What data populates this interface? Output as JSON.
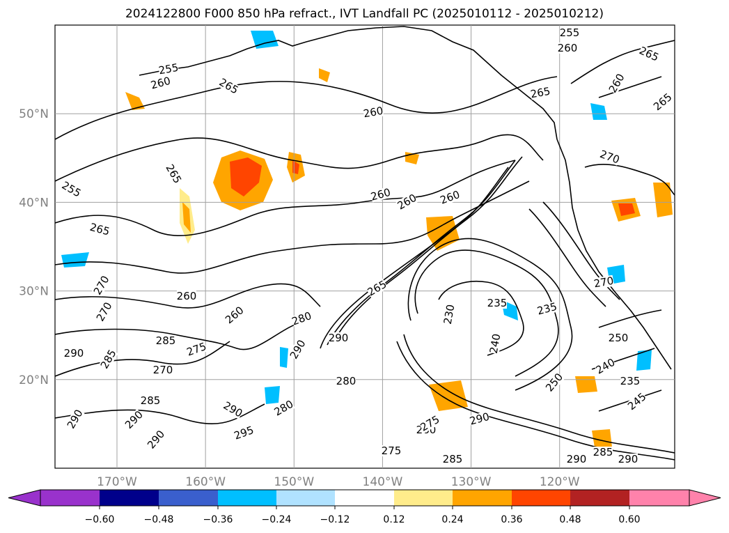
{
  "title": "2024122800 F000 850 hPa refract., IVT Landfall PC (2025010112 - 2025010212)",
  "map": {
    "lat_labels": [
      "50°N",
      "40°N",
      "30°N",
      "20°N"
    ],
    "lon_labels": [
      "170°W",
      "160°W",
      "150°W",
      "140°W",
      "130°W",
      "120°W"
    ],
    "extent": {
      "lon": [
        -177,
        -107
      ],
      "lat": [
        10,
        60
      ]
    },
    "gridlines": true,
    "contour_labels": [
      "255",
      "260",
      "265",
      "255",
      "260",
      "265",
      "260",
      "265",
      "260",
      "265",
      "265",
      "260",
      "260",
      "260",
      "255",
      "265",
      "270",
      "270",
      "270",
      "260",
      "260",
      "270",
      "290",
      "280",
      "290",
      "285",
      "275",
      "270",
      "285",
      "290",
      "280",
      "285",
      "290",
      "290",
      "290",
      "275",
      "285",
      "290",
      "280",
      "290",
      "285",
      "235",
      "230",
      "240",
      "235",
      "250",
      "240",
      "235",
      "245",
      "250",
      "275",
      "280",
      "290",
      "295",
      "290",
      "265"
    ]
  },
  "colorbar": {
    "ticks": [
      "−0.60",
      "−0.48",
      "−0.36",
      "−0.24",
      "−0.12",
      "0.12",
      "0.24",
      "0.36",
      "0.48",
      "0.60"
    ],
    "colors": {
      "under": "#9932cc",
      "bins": [
        "#9932cc",
        "#00008b",
        "#3a5fcd",
        "#00bfff",
        "#b0e2ff",
        "#ffffff",
        "#ffec8b",
        "#ffa500",
        "#ff4500",
        "#b22222",
        "#ff82ab"
      ],
      "over": "#ff82ab"
    }
  }
}
